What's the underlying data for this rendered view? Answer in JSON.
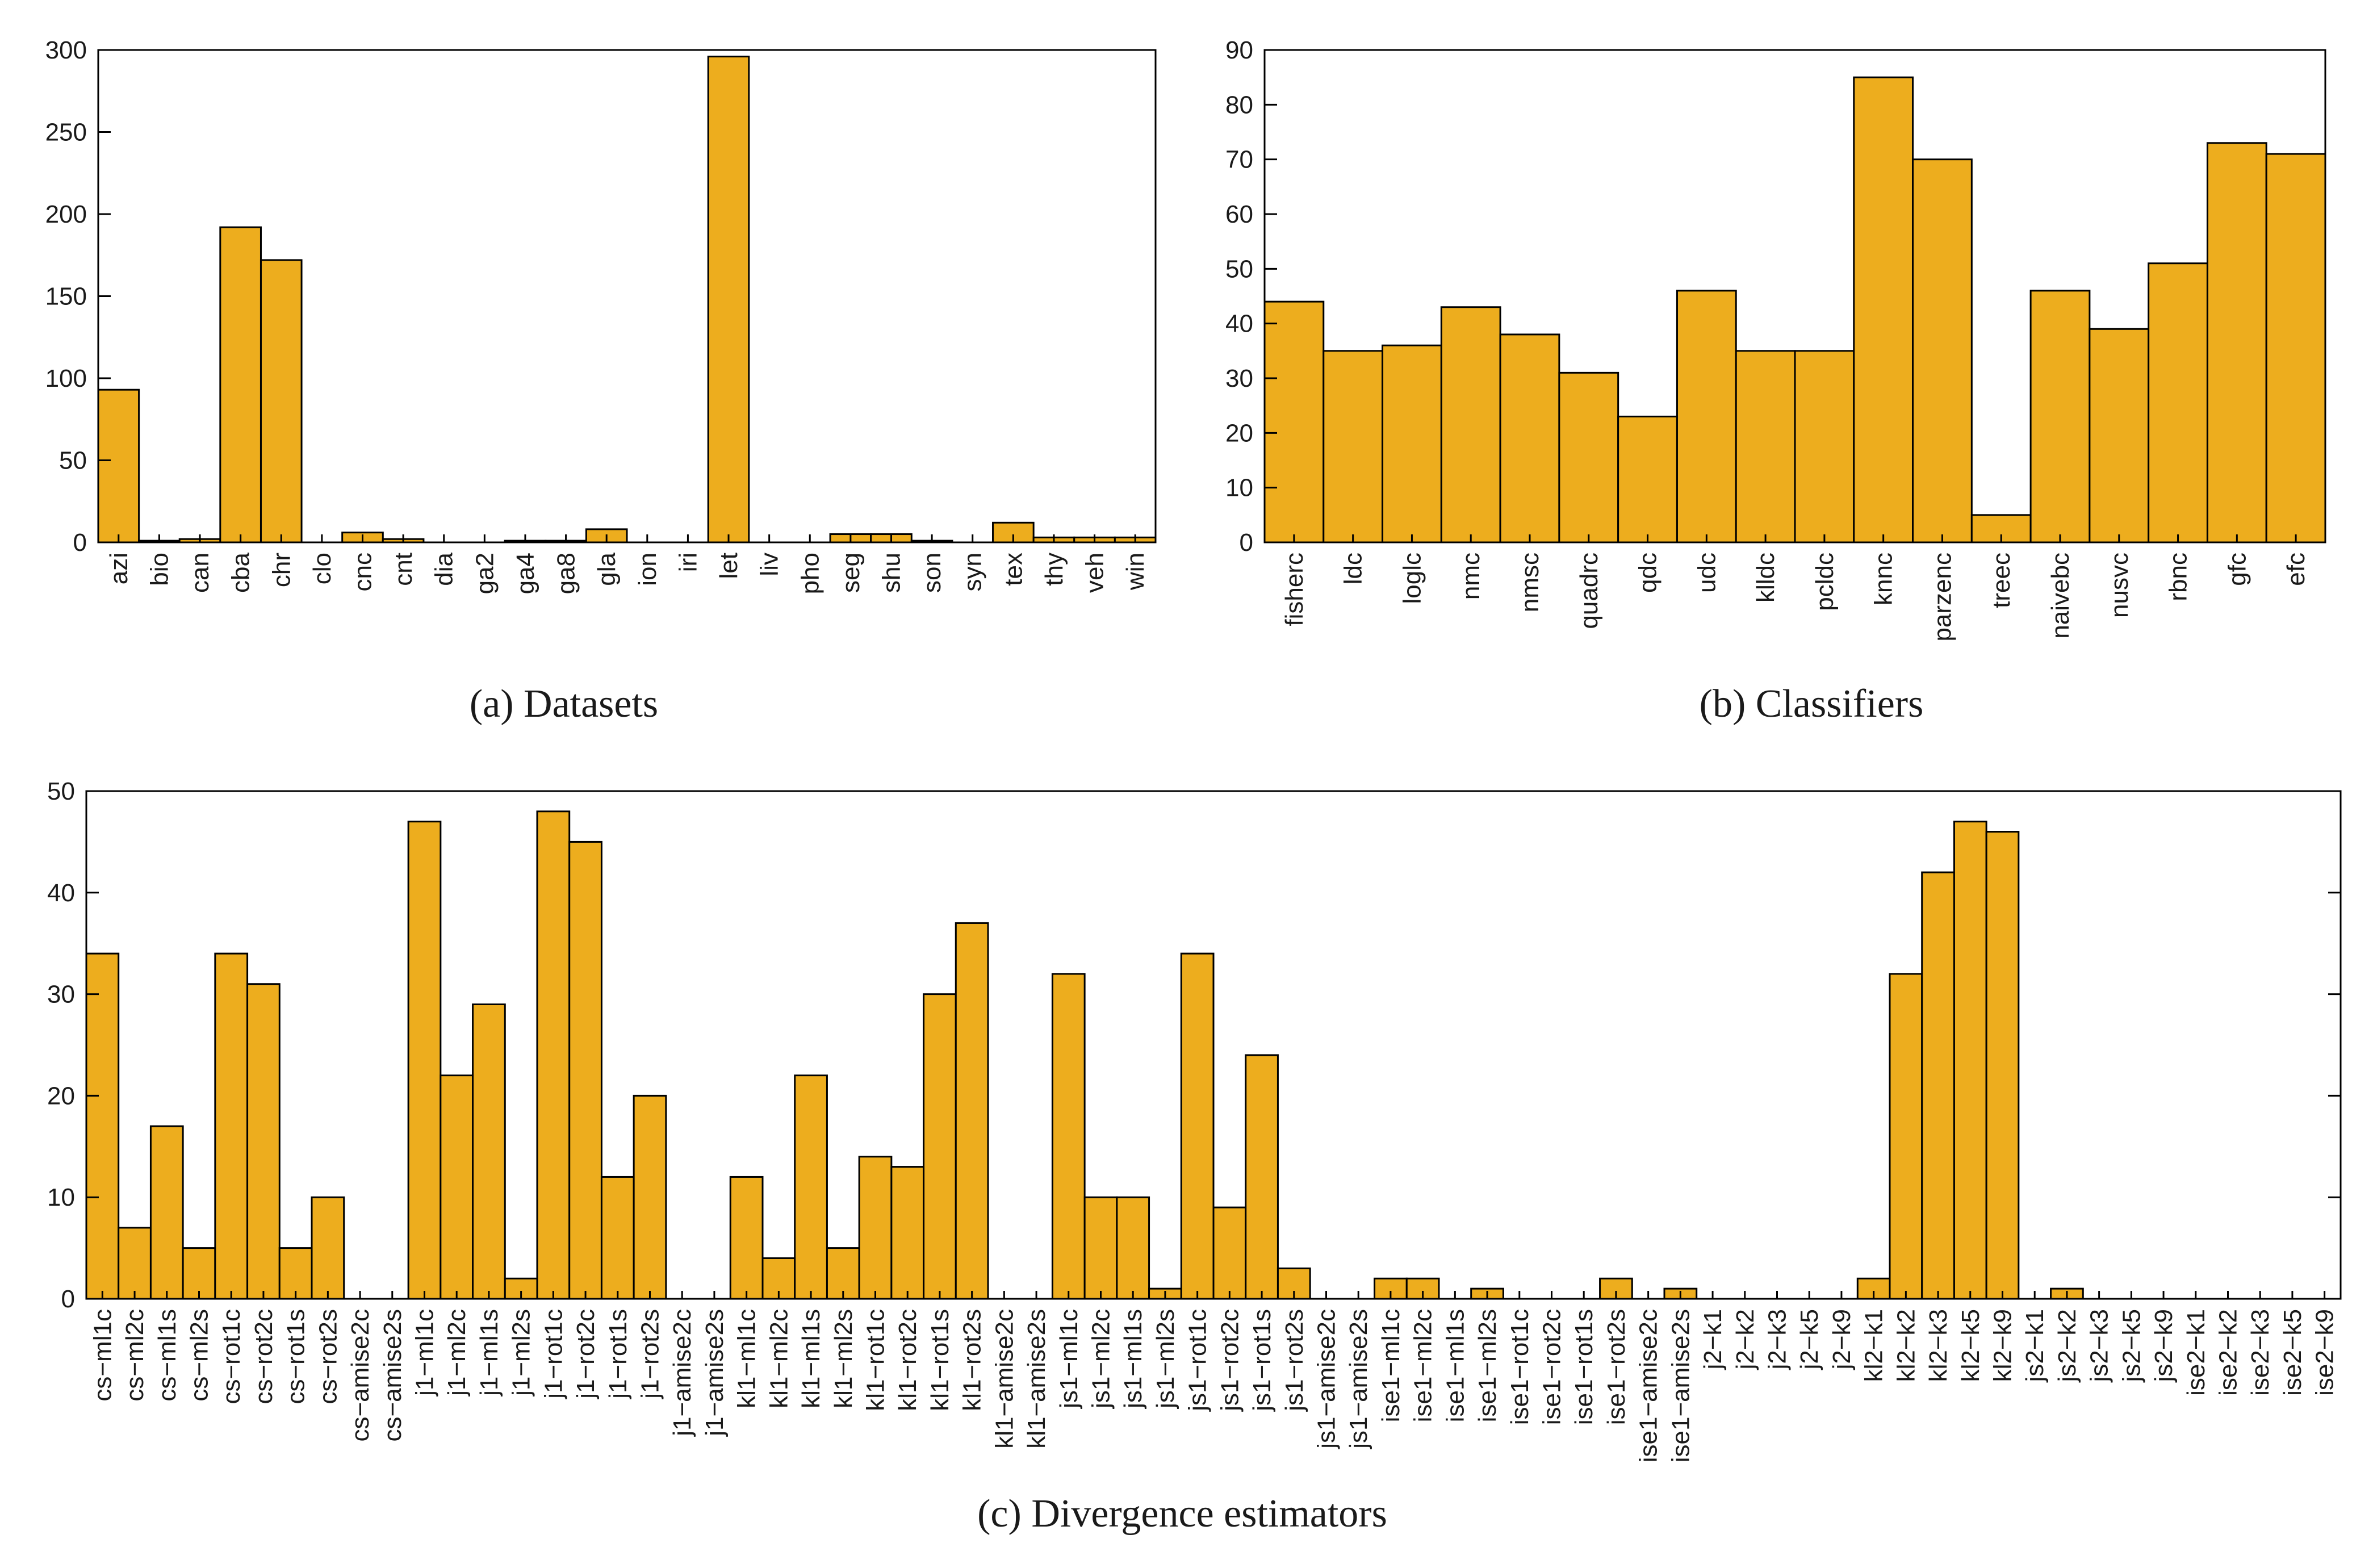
{
  "chart_data": [
    {
      "type": "bar",
      "caption": "(a)  Datasets",
      "categories": [
        "azi",
        "bio",
        "can",
        "cba",
        "chr",
        "clo",
        "cnc",
        "cnt",
        "dia",
        "ga2",
        "ga4",
        "ga8",
        "gla",
        "ion",
        "iri",
        "let",
        "liv",
        "pho",
        "seg",
        "shu",
        "son",
        "syn",
        "tex",
        "thy",
        "veh",
        "win"
      ],
      "values": [
        93,
        1,
        2,
        192,
        172,
        0,
        6,
        2,
        0,
        0,
        1,
        1,
        8,
        0,
        0,
        296,
        0,
        0,
        5,
        5,
        1,
        0,
        12,
        3,
        3,
        3
      ],
      "ylim": [
        0,
        300
      ],
      "yticks": [
        0,
        50,
        100,
        150,
        200,
        250,
        300
      ],
      "xlabel": "",
      "ylabel": "",
      "title": ""
    },
    {
      "type": "bar",
      "caption": "(b)  Classifiers",
      "categories": [
        "fisherc",
        "ldc",
        "loglc",
        "nmc",
        "nmsc",
        "quadrc",
        "qdc",
        "udc",
        "klldc",
        "pcldc",
        "knnc",
        "parzenc",
        "treec",
        "naivebc",
        "nusvc",
        "rbnc",
        "gfc",
        "efc"
      ],
      "values": [
        44,
        35,
        36,
        43,
        38,
        31,
        23,
        46,
        35,
        35,
        85,
        70,
        5,
        46,
        39,
        51,
        73,
        71
      ],
      "ylim": [
        0,
        90
      ],
      "yticks": [
        0,
        10,
        20,
        30,
        40,
        50,
        60,
        70,
        80,
        90
      ],
      "xlabel": "",
      "ylabel": "",
      "title": ""
    },
    {
      "type": "bar",
      "caption": "(c)  Divergence estimators",
      "categories": [
        "cs−ml1c",
        "cs−ml2c",
        "cs−ml1s",
        "cs−ml2s",
        "cs−rot1c",
        "cs−rot2c",
        "cs−rot1s",
        "cs−rot2s",
        "cs−amise2c",
        "cs−amise2s",
        "j1−ml1c",
        "j1−ml2c",
        "j1−ml1s",
        "j1−ml2s",
        "j1−rot1c",
        "j1−rot2c",
        "j1−rot1s",
        "j1−rot2s",
        "j1−amise2c",
        "j1−amise2s",
        "kl1−ml1c",
        "kl1−ml2c",
        "kl1−ml1s",
        "kl1−ml2s",
        "kl1−rot1c",
        "kl1−rot2c",
        "kl1−rot1s",
        "kl1−rot2s",
        "kl1−amise2c",
        "kl1−amise2s",
        "js1−ml1c",
        "js1−ml2c",
        "js1−ml1s",
        "js1−ml2s",
        "js1−rot1c",
        "js1−rot2c",
        "js1−rot1s",
        "js1−rot2s",
        "js1−amise2c",
        "js1−amise2s",
        "ise1−ml1c",
        "ise1−ml2c",
        "ise1−ml1s",
        "ise1−ml2s",
        "ise1−rot1c",
        "ise1−rot2c",
        "ise1−rot1s",
        "ise1−rot2s",
        "ise1−amise2c",
        "ise1−amise2s",
        "j2−k1",
        "j2−k2",
        "j2−k3",
        "j2−k5",
        "j2−k9",
        "kl2−k1",
        "kl2−k2",
        "kl2−k3",
        "kl2−k5",
        "kl2−k9",
        "js2−k1",
        "js2−k2",
        "js2−k3",
        "js2−k5",
        "js2−k9",
        "ise2−k1",
        "ise2−k2",
        "ise2−k3",
        "ise2−k5",
        "ise2−k9"
      ],
      "values": [
        34,
        7,
        17,
        5,
        34,
        31,
        5,
        10,
        0,
        0,
        47,
        22,
        29,
        2,
        48,
        45,
        12,
        20,
        0,
        0,
        12,
        4,
        22,
        5,
        14,
        13,
        30,
        37,
        0,
        0,
        32,
        10,
        10,
        1,
        34,
        9,
        24,
        3,
        0,
        0,
        2,
        2,
        0,
        1,
        0,
        0,
        0,
        2,
        0,
        1,
        0,
        0,
        0,
        0,
        0,
        2,
        32,
        42,
        47,
        46,
        0,
        1,
        0,
        0,
        0,
        0,
        0,
        0,
        0,
        0
      ],
      "ylim": [
        0,
        50
      ],
      "yticks": [
        0,
        10,
        20,
        30,
        40,
        50
      ],
      "xlabel": "",
      "ylabel": "",
      "title": ""
    }
  ],
  "colors": {
    "bar_fill": "#EDAD1E",
    "bar_edge": "#000000"
  }
}
